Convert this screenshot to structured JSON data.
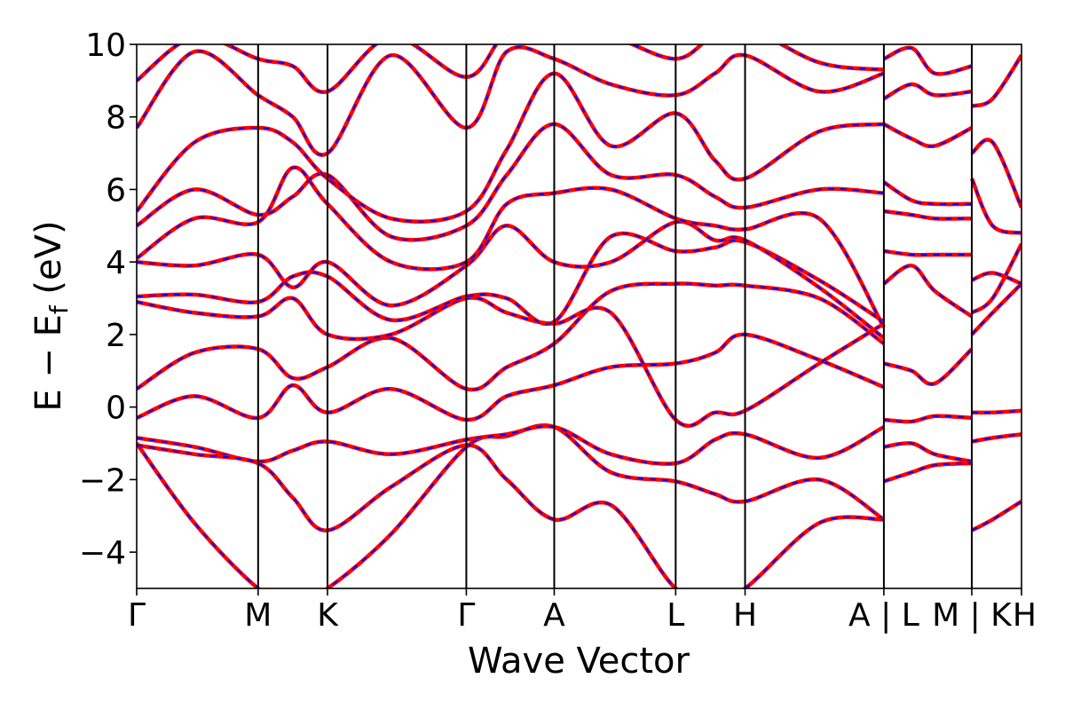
{
  "chart_data": {
    "type": "line",
    "title": "",
    "xlabel": "Wave Vector",
    "ylabel_parts": {
      "main": "E − E",
      "sub": "f",
      "unit": " (eV)"
    },
    "ylim": [
      -5,
      10
    ],
    "yticks": [
      -4,
      -2,
      0,
      2,
      4,
      6,
      8,
      10
    ],
    "ytick_labels": [
      "−4",
      "−2",
      "0",
      "2",
      "4",
      "6",
      "8",
      "10"
    ],
    "xlim": [
      0,
      7.65
    ],
    "high_symmetry_points": [
      {
        "label": "Γ",
        "x": 0.0
      },
      {
        "label": "M",
        "x": 1.05
      },
      {
        "label": "K",
        "x": 1.65
      },
      {
        "label": "Γ",
        "x": 2.85
      },
      {
        "label": "A",
        "x": 3.61
      },
      {
        "label": "L",
        "x": 4.66
      },
      {
        "label": "H",
        "x": 5.26
      },
      {
        "label": "A | L",
        "x": 6.46
      },
      {
        "label": "M | K",
        "x": 7.22
      },
      {
        "label": "H",
        "x": 7.65
      }
    ],
    "grid": false,
    "legend": "none",
    "colors": {
      "solid": "#ff0000",
      "dashed": "#0000ff"
    },
    "series": [
      {
        "x": [
          0,
          0.5,
          1.05,
          1.35,
          1.65,
          2.2,
          2.85,
          3.2,
          3.61,
          4.1,
          4.66,
          5.0,
          5.26,
          5.9,
          6.46
        ],
        "y": [
          -1.0,
          -3.2,
          -5.0,
          -5.4,
          -5.0,
          -3.5,
          -1.1,
          -0.8,
          -0.55,
          -1.8,
          -2.05,
          -2.4,
          -2.6,
          -2.0,
          -3.1
        ]
      },
      {
        "x": [
          0,
          0.5,
          1.05,
          1.35,
          1.65,
          2.2,
          2.85,
          3.2,
          3.61,
          4.1,
          4.66,
          5.0,
          5.26,
          5.9,
          6.46
        ],
        "y": [
          -0.85,
          -1.1,
          -1.5,
          -1.2,
          -0.95,
          -1.3,
          -0.9,
          -0.75,
          -0.55,
          -1.3,
          -1.55,
          -0.9,
          -0.75,
          -1.4,
          -0.55
        ]
      },
      {
        "x": [
          0,
          0.5,
          1.05,
          1.35,
          1.65,
          2.2,
          2.85,
          3.2,
          3.61,
          4.1,
          4.66,
          5.0,
          5.26,
          5.9,
          6.46
        ],
        "y": [
          -1.05,
          -1.3,
          -1.55,
          -2.5,
          -3.4,
          -2.2,
          -1.05,
          -2.0,
          -3.1,
          -2.7,
          -5.0,
          -5.2,
          -5.0,
          -3.2,
          -3.1
        ]
      },
      {
        "x": [
          0,
          0.5,
          1.05,
          1.35,
          1.65,
          2.2,
          2.85,
          3.2,
          3.61,
          4.1,
          4.66,
          5.0,
          5.26,
          5.9,
          6.46
        ],
        "y": [
          -0.3,
          0.3,
          -0.3,
          0.6,
          -0.15,
          0.5,
          -0.35,
          0.3,
          0.6,
          1.1,
          1.2,
          1.5,
          2.0,
          1.3,
          0.55
        ]
      },
      {
        "x": [
          0,
          0.5,
          1.05,
          1.35,
          1.65,
          2.2,
          2.85,
          3.2,
          3.61,
          4.1,
          4.66,
          5.0,
          5.26,
          5.9,
          6.46
        ],
        "y": [
          0.5,
          1.5,
          1.6,
          0.8,
          1.1,
          1.9,
          0.5,
          1.1,
          1.75,
          3.2,
          3.4,
          3.35,
          3.35,
          3.0,
          1.75
        ]
      },
      {
        "x": [
          0,
          0.5,
          1.05,
          1.35,
          1.65,
          2.2,
          2.85,
          3.2,
          3.61,
          4.1,
          4.66,
          5.0,
          5.26,
          5.9,
          6.46
        ],
        "y": [
          2.9,
          2.6,
          2.5,
          3.0,
          2.0,
          2.0,
          3.0,
          2.6,
          2.3,
          2.6,
          -0.35,
          -0.15,
          -0.1,
          1.2,
          2.3
        ]
      },
      {
        "x": [
          0,
          0.5,
          1.05,
          1.35,
          1.65,
          2.2,
          2.85,
          3.2,
          3.61,
          4.1,
          4.66,
          5.0,
          5.26,
          5.9,
          6.46
        ],
        "y": [
          3.05,
          3.1,
          2.9,
          3.6,
          3.6,
          2.4,
          3.05,
          3.0,
          2.35,
          4.7,
          4.3,
          4.4,
          4.55,
          3.5,
          2.35
        ]
      },
      {
        "x": [
          0,
          0.5,
          1.05,
          1.35,
          1.65,
          2.2,
          2.85,
          3.2,
          3.61,
          4.1,
          4.66,
          5.0,
          5.26,
          5.9,
          6.46
        ],
        "y": [
          4.0,
          3.9,
          4.2,
          3.3,
          4.0,
          2.8,
          3.9,
          5.0,
          4.0,
          4.0,
          5.1,
          4.6,
          4.6,
          3.3,
          1.9
        ]
      },
      {
        "x": [
          0,
          0.5,
          1.05,
          1.35,
          1.65,
          2.2,
          2.85,
          3.2,
          3.61,
          4.1,
          4.66,
          5.0,
          5.26,
          5.9,
          6.46
        ],
        "y": [
          4.1,
          5.2,
          5.1,
          6.6,
          5.6,
          4.0,
          4.0,
          5.6,
          5.9,
          6.0,
          5.2,
          5.0,
          4.9,
          5.2,
          2.2
        ]
      },
      {
        "x": [
          0,
          0.5,
          1.05,
          1.35,
          1.65,
          2.2,
          2.85,
          3.2,
          3.61,
          4.1,
          4.66,
          5.0,
          5.26,
          5.9,
          6.46
        ],
        "y": [
          5.0,
          6.0,
          5.3,
          5.8,
          6.4,
          4.7,
          5.0,
          6.4,
          7.8,
          6.4,
          6.4,
          5.8,
          5.5,
          6.0,
          5.9
        ]
      },
      {
        "x": [
          0,
          0.5,
          1.05,
          1.35,
          1.65,
          2.2,
          2.85,
          3.2,
          3.61,
          4.1,
          4.66,
          5.0,
          5.26,
          5.9,
          6.46
        ],
        "y": [
          5.4,
          7.3,
          7.7,
          7.3,
          6.3,
          5.2,
          5.4,
          7.1,
          9.2,
          7.2,
          8.1,
          6.8,
          6.3,
          7.6,
          7.8
        ]
      },
      {
        "x": [
          0,
          0.5,
          1.05,
          1.35,
          1.65,
          2.2,
          2.85,
          3.2,
          3.61,
          4.1,
          4.66,
          5.0,
          5.26,
          5.9,
          6.46
        ],
        "y": [
          7.7,
          9.8,
          8.6,
          8.0,
          7.0,
          9.7,
          7.7,
          9.8,
          9.6,
          8.9,
          8.6,
          9.2,
          9.7,
          8.7,
          9.2
        ]
      },
      {
        "x": [
          0,
          0.5,
          1.05,
          1.35,
          1.65,
          2.2,
          2.85,
          3.2,
          3.61,
          4.1,
          4.66,
          5.0,
          5.26,
          5.9,
          6.46
        ],
        "y": [
          9.0,
          10.2,
          9.6,
          9.4,
          8.7,
          10.2,
          9.1,
          10.3,
          10.2,
          10.2,
          9.6,
          10.3,
          10.5,
          9.5,
          9.3
        ]
      },
      {
        "x": [
          6.46,
          6.7,
          6.9,
          7.22
        ],
        "y": [
          -0.35,
          -0.4,
          -0.25,
          -0.3
        ]
      },
      {
        "x": [
          6.46,
          6.7,
          6.9,
          7.22
        ],
        "y": [
          -1.1,
          -1.0,
          -1.3,
          -1.5
        ]
      },
      {
        "x": [
          6.46,
          6.7,
          6.9,
          7.22
        ],
        "y": [
          -2.05,
          -1.8,
          -1.6,
          -1.55
        ]
      },
      {
        "x": [
          6.46,
          6.7,
          6.9,
          7.22
        ],
        "y": [
          1.2,
          1.0,
          0.65,
          1.6
        ]
      },
      {
        "x": [
          6.46,
          6.7,
          6.9,
          7.22
        ],
        "y": [
          3.4,
          3.9,
          3.2,
          2.5
        ]
      },
      {
        "x": [
          6.46,
          6.7,
          6.9,
          7.22
        ],
        "y": [
          4.3,
          4.2,
          4.2,
          4.2
        ]
      },
      {
        "x": [
          6.46,
          6.7,
          6.9,
          7.22
        ],
        "y": [
          5.4,
          5.3,
          5.2,
          5.2
        ]
      },
      {
        "x": [
          6.46,
          6.7,
          6.9,
          7.22
        ],
        "y": [
          6.2,
          5.7,
          5.6,
          5.6
        ]
      },
      {
        "x": [
          6.46,
          6.7,
          6.9,
          7.22
        ],
        "y": [
          7.8,
          7.4,
          7.2,
          7.7
        ]
      },
      {
        "x": [
          6.46,
          6.7,
          6.9,
          7.22
        ],
        "y": [
          8.5,
          8.9,
          8.6,
          8.7
        ]
      },
      {
        "x": [
          6.46,
          6.7,
          6.9,
          7.22
        ],
        "y": [
          9.6,
          9.9,
          9.2,
          9.4
        ]
      },
      {
        "x": [
          7.22,
          7.4,
          7.65
        ],
        "y": [
          -3.4,
          -3.1,
          -2.6
        ]
      },
      {
        "x": [
          7.22,
          7.4,
          7.65
        ],
        "y": [
          -0.95,
          -0.85,
          -0.75
        ]
      },
      {
        "x": [
          7.22,
          7.4,
          7.65
        ],
        "y": [
          -0.15,
          -0.15,
          -0.1
        ]
      },
      {
        "x": [
          7.22,
          7.4,
          7.65
        ],
        "y": [
          2.0,
          2.6,
          3.4
        ]
      },
      {
        "x": [
          7.22,
          7.4,
          7.65
        ],
        "y": [
          2.6,
          3.0,
          4.5
        ]
      },
      {
        "x": [
          7.22,
          7.4,
          7.65
        ],
        "y": [
          3.5,
          3.7,
          3.4
        ]
      },
      {
        "x": [
          7.22,
          7.4,
          7.65
        ],
        "y": [
          6.3,
          5.0,
          4.8
        ]
      },
      {
        "x": [
          7.22,
          7.4,
          7.65
        ],
        "y": [
          7.0,
          7.3,
          5.5
        ]
      },
      {
        "x": [
          7.22,
          7.4,
          7.65
        ],
        "y": [
          8.3,
          8.5,
          9.7
        ]
      }
    ]
  }
}
